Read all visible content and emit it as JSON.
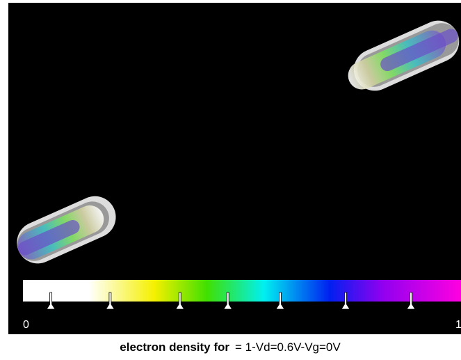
{
  "colorbar": {
    "range": [
      0,
      1
    ],
    "markers": [
      0.064,
      0.2,
      0.36,
      0.47,
      0.59,
      0.74,
      0.89
    ]
  },
  "caption": {
    "label": "electron density for",
    "value": "= 1-Vd=0.6V-Vg=0V"
  }
}
